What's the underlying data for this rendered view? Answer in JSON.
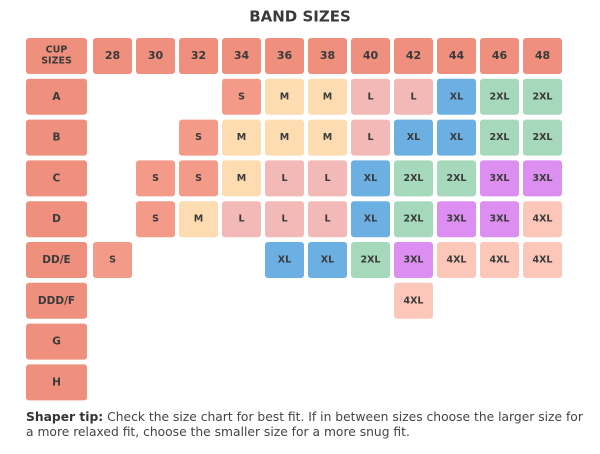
{
  "title": "BAND SIZES",
  "header": {
    "cup_label": [
      "CUP",
      "SIZES"
    ],
    "bands": [
      "28",
      "30",
      "32",
      "34",
      "36",
      "38",
      "40",
      "42",
      "44",
      "46",
      "48"
    ]
  },
  "size_colors": {
    "S": "#f49a88",
    "M": "#fddcb1",
    "L": "#f3b9b7",
    "XL": "#6cafe2",
    "2XL": "#a6d9bb",
    "3XL": "#dc8ff0",
    "4XL": "#fcc6b8"
  },
  "header_color": "#ef8f7d",
  "rows": [
    {
      "cup": "A",
      "cells": [
        null,
        null,
        null,
        "S",
        "M",
        "M",
        "L",
        "L",
        "XL",
        "2XL",
        "2XL"
      ]
    },
    {
      "cup": "B",
      "cells": [
        null,
        null,
        "S",
        "M",
        "M",
        "M",
        "L",
        "XL",
        "XL",
        "2XL",
        "2XL"
      ]
    },
    {
      "cup": "C",
      "cells": [
        null,
        "S",
        "S",
        "M",
        "L",
        "L",
        "XL",
        "2XL",
        "2XL",
        "3XL",
        "3XL"
      ]
    },
    {
      "cup": "D",
      "cells": [
        null,
        "S",
        "M",
        "L",
        "L",
        "L",
        "XL",
        "2XL",
        "3XL",
        "3XL",
        "4XL"
      ]
    },
    {
      "cup": "DD/E",
      "cells": [
        "S",
        null,
        null,
        null,
        "XL",
        "XL",
        "2XL",
        "3XL",
        "4XL",
        "4XL",
        "4XL"
      ]
    },
    {
      "cup": "DDD/F",
      "cells": [
        null,
        null,
        null,
        null,
        null,
        null,
        null,
        "4XL",
        null,
        null,
        null
      ]
    },
    {
      "cup": "G",
      "cells": [
        null,
        null,
        null,
        null,
        null,
        null,
        null,
        null,
        null,
        null,
        null
      ]
    },
    {
      "cup": "H",
      "cells": [
        null,
        null,
        null,
        null,
        null,
        null,
        null,
        null,
        null,
        null,
        null
      ]
    }
  ],
  "tip": {
    "label": "Shaper tip:",
    "text": "Check the size chart for best fit. If in between sizes choose the larger size for a more relaxed fit, choose the smaller size for a more snug fit."
  }
}
